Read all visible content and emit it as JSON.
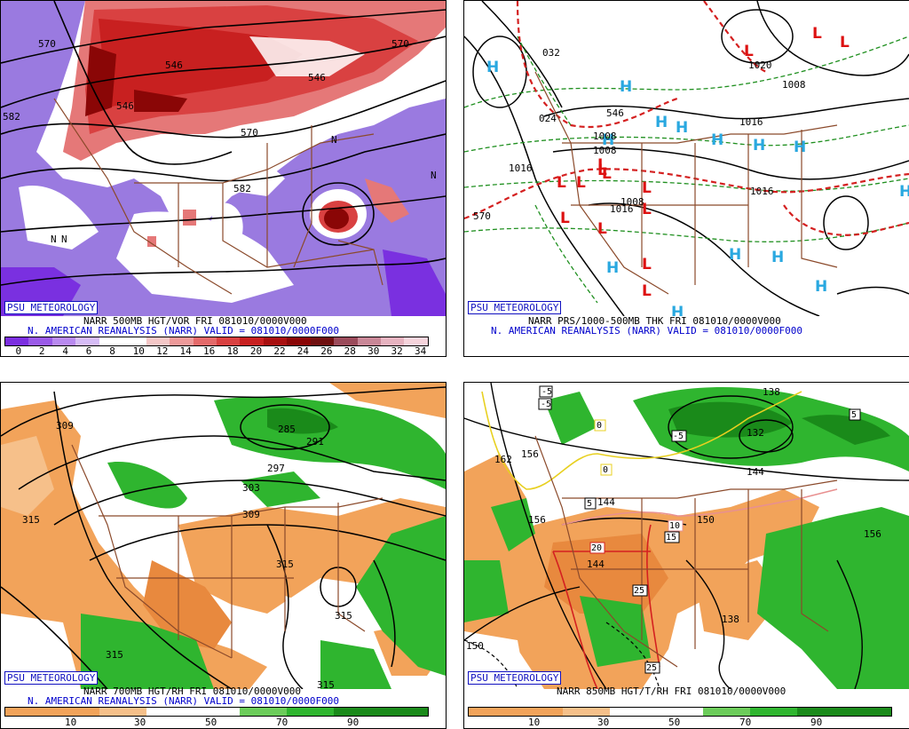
{
  "panels": [
    {
      "id": "p500",
      "title": "NARR 500MB HGT/VOR FRI 081010/0000V000",
      "subtitle": "N. AMERICAN REANALYSIS (NARR) VALID = 081010/0000F000",
      "logo": "PSU METEOROLOGY",
      "colorbar": [
        "#7b2ee0",
        "#9a5ae8",
        "#b98af0",
        "#d6bcf6",
        "#ffffff",
        "#ffffff",
        "#f4c7c7",
        "#ee9a9a",
        "#e46a6a",
        "#d94141",
        "#c82020",
        "#a80f0f",
        "#8a0606",
        "#701010",
        "#9b4b5b",
        "#c98797",
        "#e7b3c0",
        "#f6d4dc"
      ],
      "colorbar_ticks": [
        "0",
        "2",
        "4",
        "6",
        "8",
        "10",
        "12",
        "14",
        "16",
        "18",
        "20",
        "22",
        "24",
        "26",
        "28",
        "30",
        "32",
        "34"
      ],
      "contour_labels": [
        "570",
        "582",
        "546",
        "570",
        "582",
        "546",
        "570",
        "546",
        "N",
        "N",
        "N",
        "N"
      ]
    },
    {
      "id": "pprs",
      "title": "NARR PRS/1000-500MB THK FRI 081010/0000V000",
      "subtitle": "N. AMERICAN REANALYSIS (NARR) VALID = 081010/0000F000",
      "logo": "PSU METEOROLOGY",
      "contour_labels": [
        "032",
        "024",
        "1016",
        "1008",
        "1016",
        "1016",
        "1008",
        "1020",
        "1008",
        "1016",
        "570",
        "546",
        "1008"
      ],
      "highs": [
        "H",
        "H",
        "H",
        "H",
        "H",
        "H",
        "H",
        "H",
        "H",
        "H",
        "H",
        "H",
        "H"
      ],
      "lows": [
        "L",
        "L",
        "L",
        "L",
        "L",
        "L",
        "L",
        "L",
        "L",
        "L",
        "L",
        "L",
        "L",
        "L"
      ]
    },
    {
      "id": "p700",
      "title": "NARR 700MB HGT/RH FRI 081010/0000V000",
      "subtitle": "N. AMERICAN REANALYSIS (NARR) VALID = 081010/0000F000",
      "logo": "PSU METEOROLOGY",
      "colorbar_ticks": [
        "10",
        "30",
        "50",
        "70",
        "90"
      ],
      "contour_labels": [
        "309",
        "315",
        "285",
        "291",
        "297",
        "303",
        "309",
        "315",
        "315",
        "315",
        "315"
      ]
    },
    {
      "id": "p850",
      "title": "NARR 850MB HGT/T/RH FRI 081010/0000V000",
      "subtitle": "",
      "logo": "PSU METEOROLOGY",
      "colorbar_ticks": [
        "10",
        "30",
        "50",
        "70",
        "90"
      ],
      "contour_labels": [
        "-5",
        "-5",
        "5",
        "5",
        "-5",
        "0",
        "0",
        "5",
        "10",
        "15",
        "20",
        "25",
        "25",
        "162",
        "156",
        "156",
        "144",
        "150",
        "144",
        "138",
        "144",
        "132",
        "156",
        "150",
        "138"
      ]
    }
  ],
  "colors": {
    "vor_blue": "#8a63d9",
    "vor_red": "#d94141",
    "rh_orange": "#f2a35a",
    "rh_green": "#2fb52f",
    "high": "#29a8e0",
    "low": "#dd1111",
    "thickness": "#d42020",
    "isobar_green": "#209020",
    "border": "#8b4a2b"
  }
}
